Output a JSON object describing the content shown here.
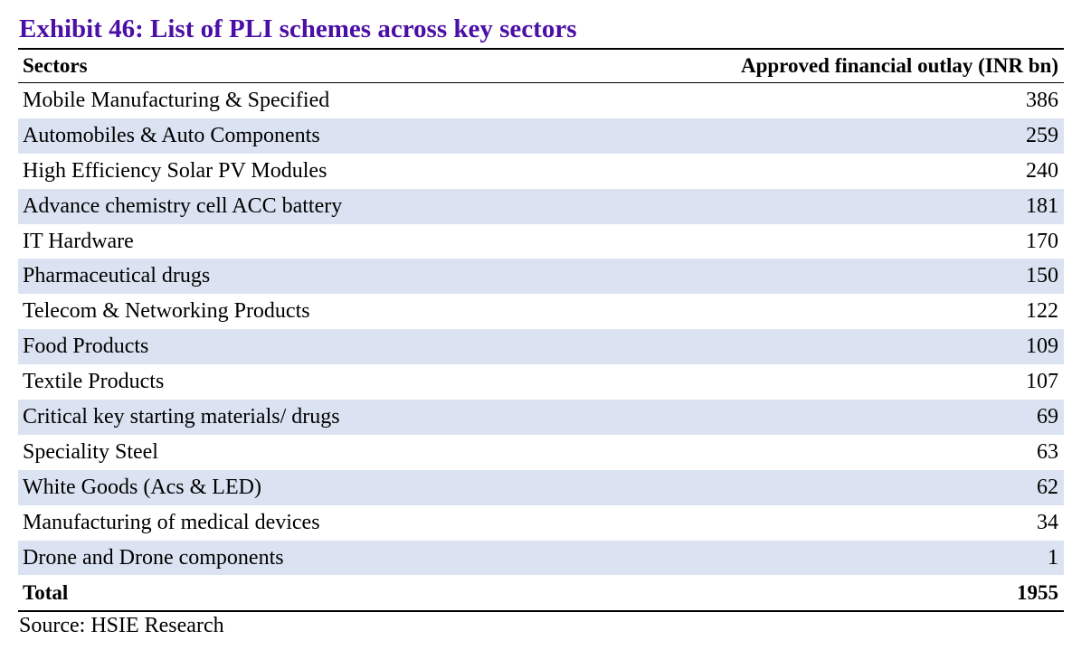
{
  "title": "Exhibit 46: List of PLI schemes across key sectors",
  "table": {
    "headers": {
      "sector": "Sectors",
      "outlay": "Approved financial outlay (INR bn)"
    },
    "rows": [
      {
        "sector": "Mobile Manufacturing & Specified",
        "outlay": "386"
      },
      {
        "sector": "Automobiles & Auto Components",
        "outlay": "259"
      },
      {
        "sector": "High Efficiency Solar PV Modules",
        "outlay": "240"
      },
      {
        "sector": "Advance chemistry cell ACC battery",
        "outlay": "181"
      },
      {
        "sector": "IT Hardware",
        "outlay": "170"
      },
      {
        "sector": "Pharmaceutical drugs",
        "outlay": "150"
      },
      {
        "sector": "Telecom & Networking Products",
        "outlay": "122"
      },
      {
        "sector": "Food Products",
        "outlay": "109"
      },
      {
        "sector": "Textile Products",
        "outlay": "107"
      },
      {
        "sector": "Critical key starting materials/ drugs",
        "outlay": "69"
      },
      {
        "sector": "Speciality Steel",
        "outlay": "63"
      },
      {
        "sector": "White Goods (Acs & LED)",
        "outlay": "62"
      },
      {
        "sector": "Manufacturing of medical devices",
        "outlay": "34"
      },
      {
        "sector": "Drone and Drone components",
        "outlay": "1"
      }
    ],
    "total": {
      "label": "Total",
      "value": "1955"
    }
  },
  "source": "Source: HSIE Research",
  "colors": {
    "title": "#4b0fa6",
    "row_band": "#dbe3f2"
  }
}
